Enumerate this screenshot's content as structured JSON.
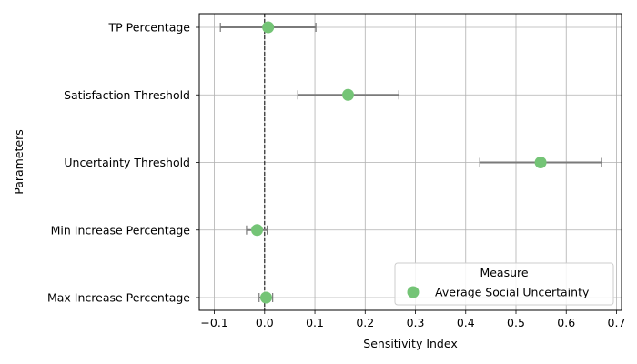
{
  "chart_data": {
    "type": "scatter",
    "xlabel": "Sensitivity Index",
    "ylabel": "Parameters",
    "xlim": [
      -0.13,
      0.71
    ],
    "x_ticks": [
      -0.1,
      0.0,
      0.1,
      0.2,
      0.3,
      0.4,
      0.5,
      0.6,
      0.7
    ],
    "x_tick_labels": [
      "−0.1",
      "0.0",
      "0.1",
      "0.2",
      "0.3",
      "0.4",
      "0.5",
      "0.6",
      "0.7"
    ],
    "grid": true,
    "reference_line_x": 0.0,
    "categories": [
      "TP Percentage",
      "Satisfaction Threshold",
      "Uncertainty Threshold",
      "Min Increase Percentage",
      "Max Increase Percentage"
    ],
    "series": [
      {
        "name": "Average Social Uncertainty",
        "color": "#74c476",
        "values": [
          0.007,
          0.166,
          0.549,
          -0.015,
          0.003
        ],
        "ci_low": [
          -0.088,
          0.066,
          0.428,
          -0.036,
          -0.011
        ],
        "ci_high": [
          0.102,
          0.267,
          0.67,
          0.005,
          0.016
        ]
      }
    ],
    "legend": {
      "title": "Measure",
      "placement": "lower-right"
    }
  }
}
